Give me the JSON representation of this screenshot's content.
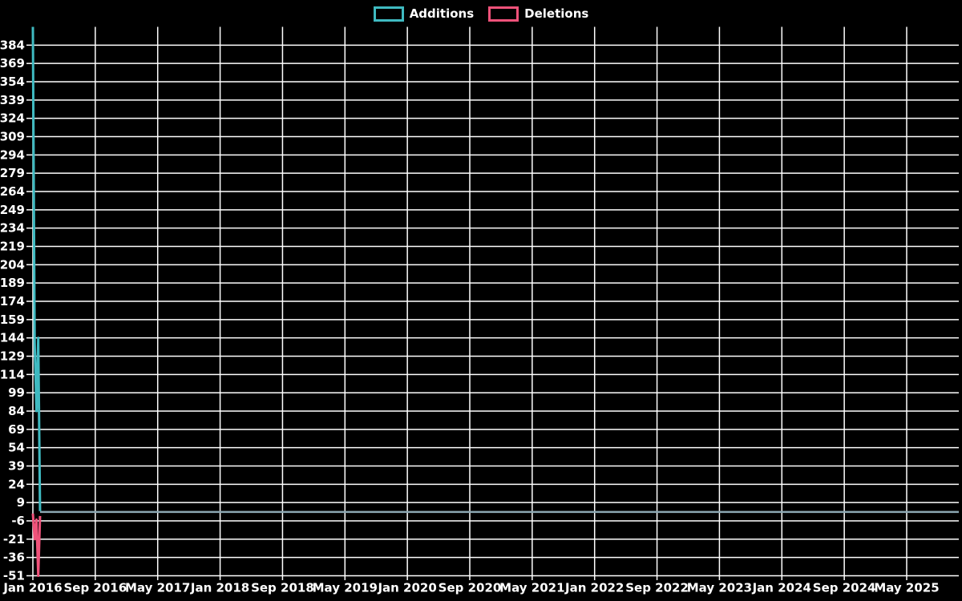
{
  "chart_data": {
    "type": "line",
    "title": "",
    "legend_position": "top-center",
    "grid": true,
    "background_color": "#000000",
    "grid_color": "#ffffff",
    "text_color": "#ffffff",
    "legend": [
      {
        "label": "Additions",
        "color": "#3fbac1"
      },
      {
        "label": "Deletions",
        "color": "#f0527a"
      }
    ],
    "x_axis": {
      "tick_labels": [
        "Jan 2016",
        "Sep 2016",
        "May 2017",
        "Jan 2018",
        "Sep 2018",
        "May 2019",
        "Jan 2020",
        "Sep 2020",
        "May 2021",
        "Jan 2022",
        "Sep 2022",
        "May 2023",
        "Jan 2024",
        "Sep 2024",
        "May 2025"
      ],
      "tick_interval_months": 8
    },
    "y_axis": {
      "tick_labels": [
        384,
        369,
        354,
        339,
        324,
        309,
        294,
        279,
        264,
        249,
        234,
        219,
        204,
        189,
        174,
        159,
        144,
        129,
        114,
        99,
        84,
        69,
        54,
        39,
        24,
        9,
        -6,
        -21,
        -36,
        -51
      ],
      "tick_step": 15,
      "range_min": -51,
      "range_max": 399
    },
    "series": [
      {
        "name": "Additions",
        "color": "#3fbac1",
        "points_weeks_from_start": [
          [
            0,
            399
          ],
          [
            1,
            140
          ],
          [
            2,
            84
          ],
          [
            3,
            144
          ],
          [
            4,
            2
          ]
        ],
        "flat_after_value": 0
      },
      {
        "name": "Deletions",
        "color": "#f0527a",
        "points_weeks_from_start": [
          [
            0,
            0
          ],
          [
            1,
            -21
          ],
          [
            2,
            -5
          ],
          [
            3,
            -51
          ],
          [
            4,
            -2
          ]
        ],
        "flat_after_value": 0
      }
    ],
    "overlap_baseline": {
      "value": 0,
      "color": "#8ba6b1",
      "note": "both series flat near zero from Feb 2016 onward; overlapping lines render as a single gray-blue line"
    }
  }
}
